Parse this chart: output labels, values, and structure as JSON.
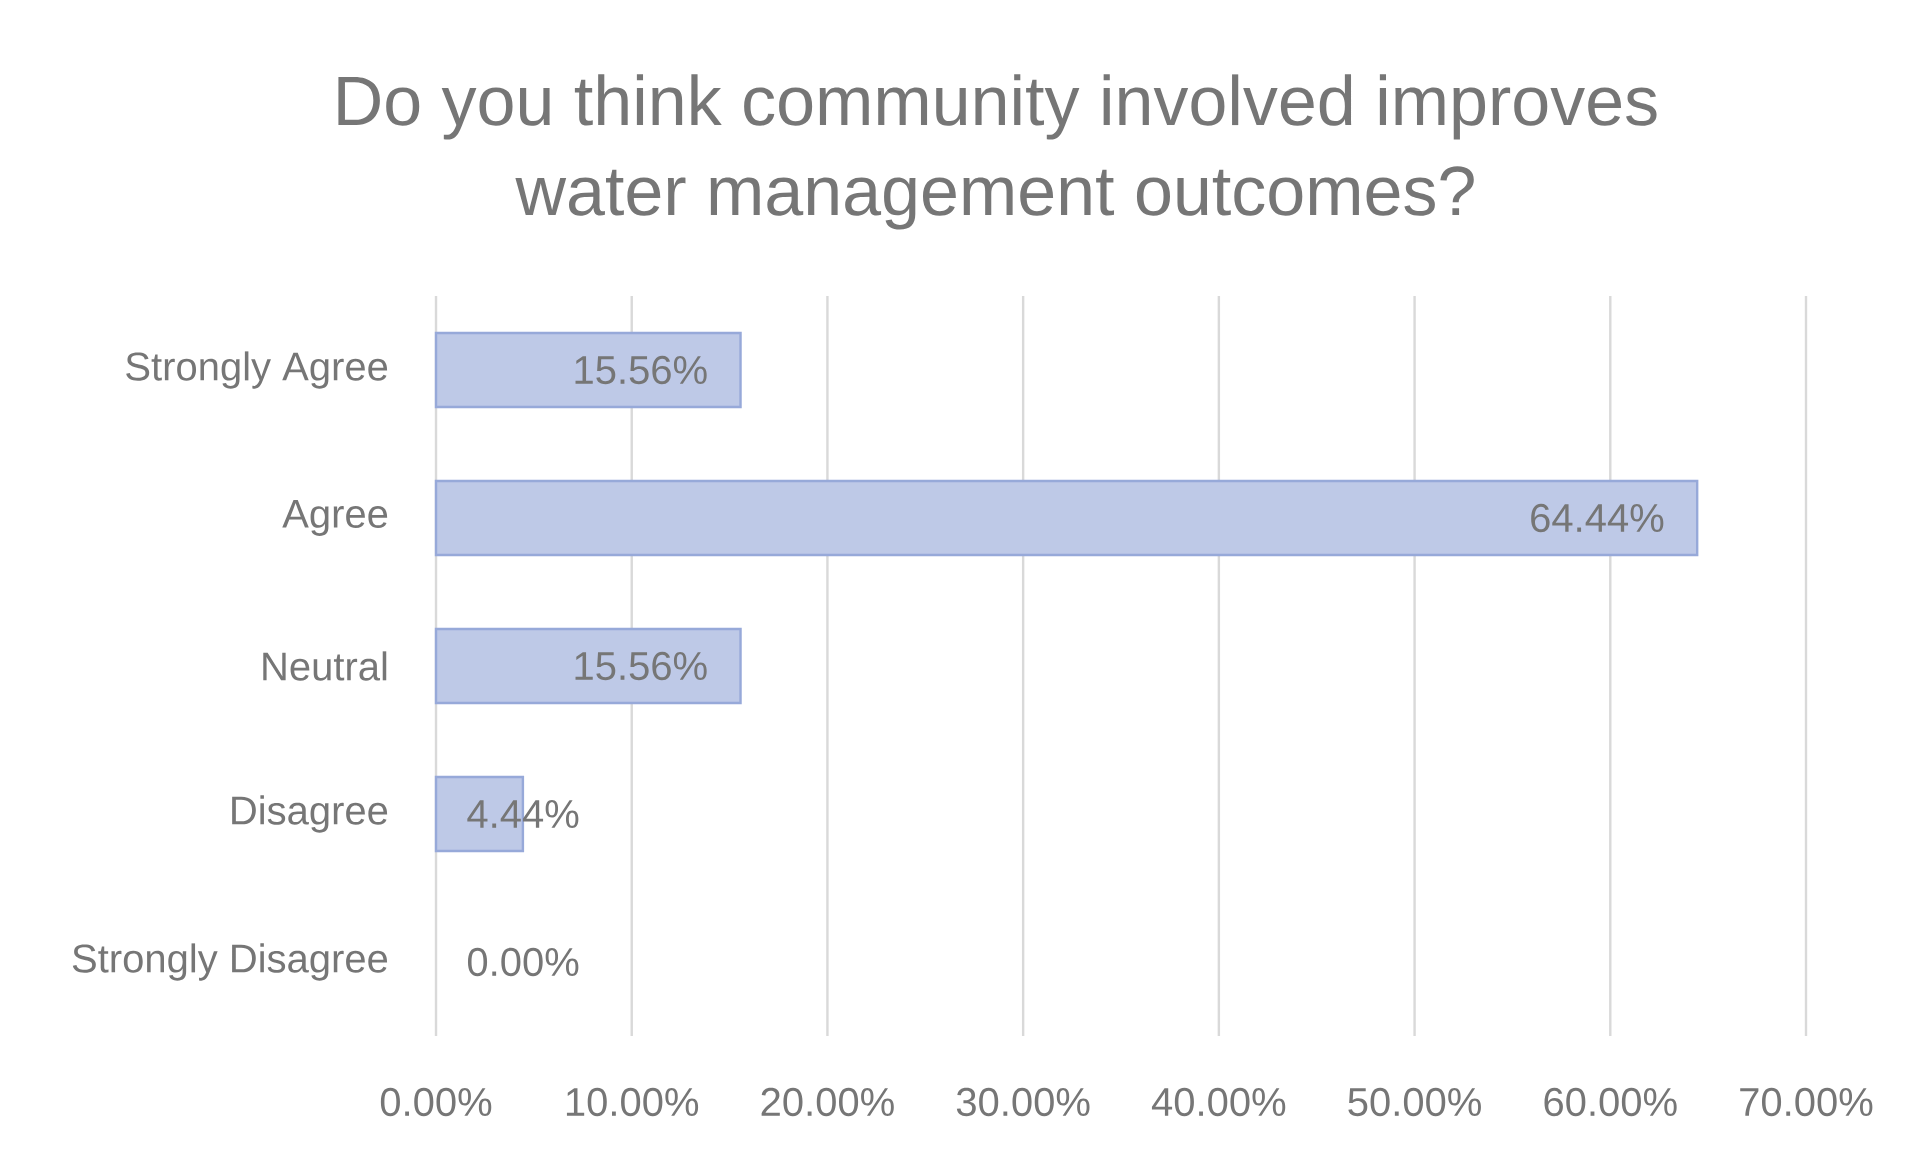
{
  "chart_data": {
    "type": "bar",
    "orientation": "horizontal",
    "title": "Do you think community involved improves water management outcomes?",
    "categories": [
      "Strongly Agree",
      "Agree",
      "Neutral",
      "Disagree",
      "Strongly Disagree"
    ],
    "values": [
      15.56,
      64.44,
      15.56,
      4.44,
      0
    ],
    "value_labels": [
      "15.56%",
      "64.44%",
      "15.56%",
      "4.44%",
      "0.00%"
    ],
    "color": "#bec9e7",
    "xlim": [
      0,
      70
    ],
    "xticks": [
      {
        "value": 0,
        "label": "0.00%"
      },
      {
        "value": 10,
        "label": "10.00%"
      },
      {
        "value": 20,
        "label": "20.00%"
      },
      {
        "value": 30,
        "label": "30.00%"
      },
      {
        "value": 40,
        "label": "40.00%"
      },
      {
        "value": 50,
        "label": "50.00%"
      },
      {
        "value": 60,
        "label": "60.00%"
      },
      {
        "value": 70,
        "label": "70.00%"
      }
    ],
    "grid": "x"
  }
}
